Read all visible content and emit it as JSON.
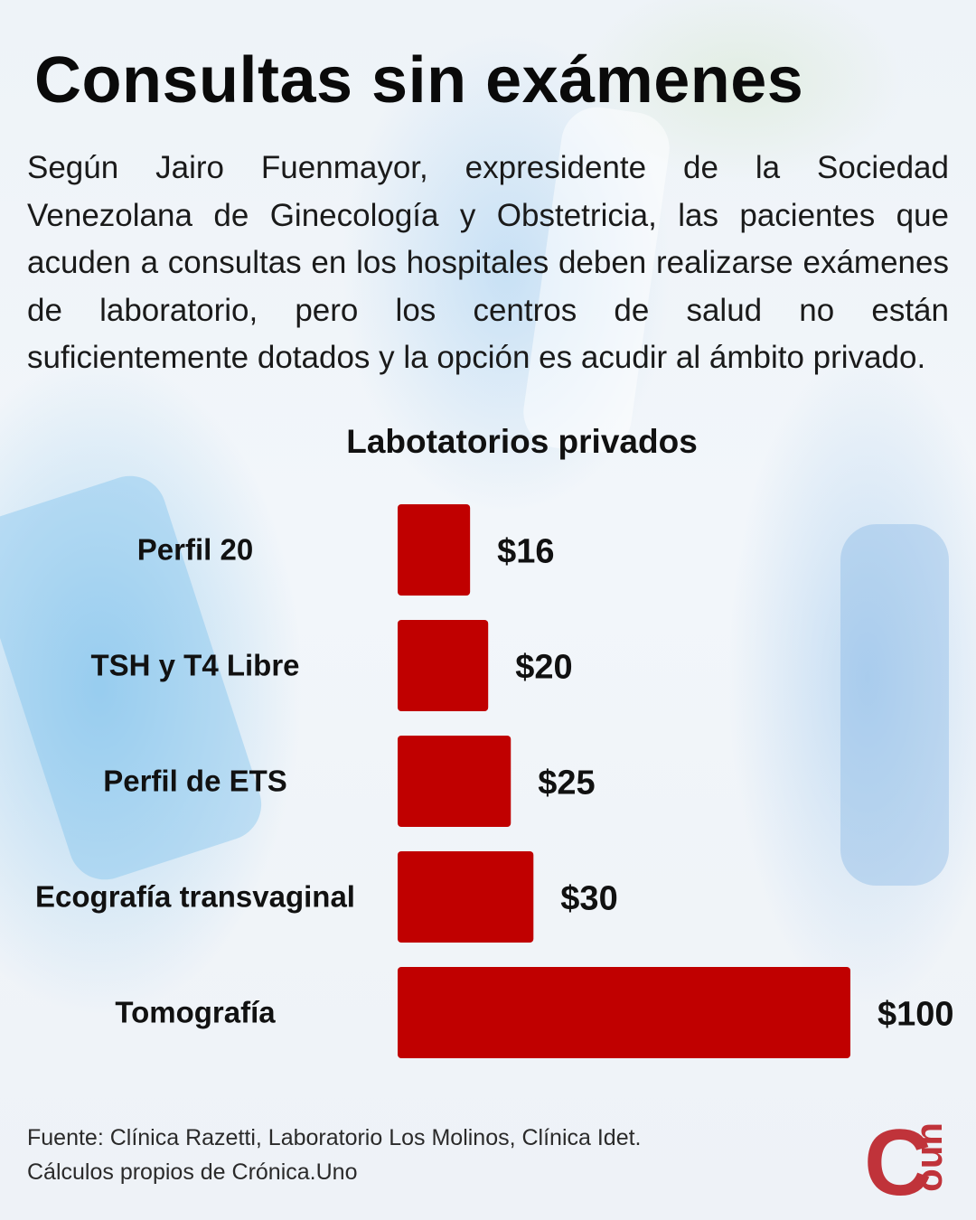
{
  "title": "Consultas sin exámenes",
  "intro": "Según Jairo Fuenmayor, expresidente de la Sociedad Venezolana de Ginecología y Obstetricia, las pacientes que acuden a consultas en los hospitales deben realizarse exámenes de laboratorio, pero los centros de salud no están suficientemente dotados y la opción es acudir al ámbito privado.",
  "source": {
    "line1": "Fuente: Clínica Razetti, Laboratorio Los Molinos, Clínica Idet.",
    "line2": "Cálculos propios de Crónica.Uno"
  },
  "logo": {
    "letter": "C",
    "text": "uno",
    "color": "#c0333a"
  },
  "colors": {
    "bar": "#c00000",
    "text": "#111111"
  },
  "chart_data": {
    "type": "bar",
    "orientation": "horizontal",
    "title": "Labotatorios privados",
    "categories": [
      "Perfil 20",
      "TSH y T4 Libre",
      "Perfil de ETS",
      "Ecografía transvaginal",
      "Tomografía"
    ],
    "values": [
      16,
      20,
      25,
      30,
      100
    ],
    "value_labels": [
      "$16",
      "$20",
      "$25",
      "$30",
      "$100"
    ],
    "unit": "$",
    "xlim": [
      0,
      100
    ],
    "grid": false,
    "axes_visible": false
  }
}
